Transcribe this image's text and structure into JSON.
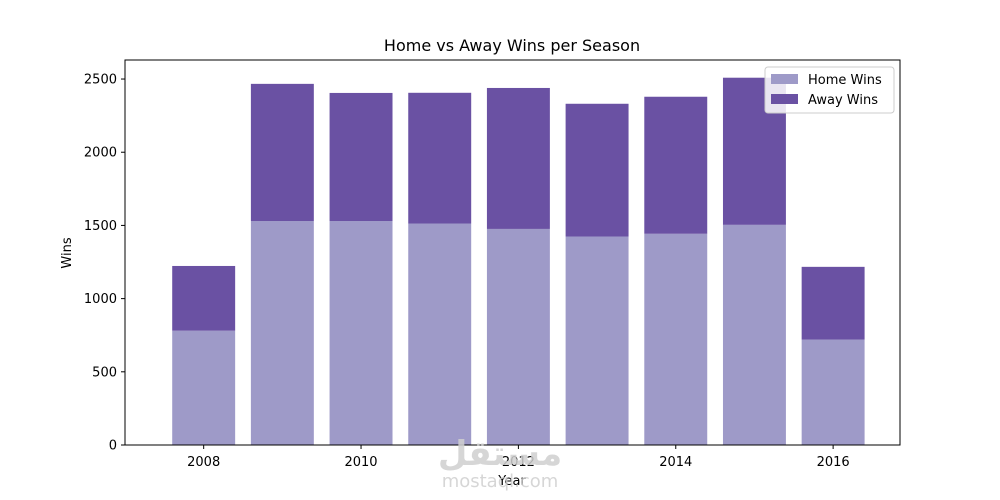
{
  "chart_data": {
    "type": "bar",
    "stacked": true,
    "title": "Home vs Away Wins per Season",
    "xlabel": "Year",
    "ylabel": "Wins",
    "categories": [
      2008,
      2009,
      2010,
      2011,
      2012,
      2013,
      2014,
      2015,
      2016
    ],
    "series": [
      {
        "name": "Home Wins",
        "color": "#9e9ac8",
        "values": [
          781,
          1530,
          1530,
          1513,
          1476,
          1424,
          1443,
          1504,
          720
        ]
      },
      {
        "name": "Away Wins",
        "color": "#6a51a3",
        "values": [
          442,
          937,
          875,
          893,
          963,
          907,
          936,
          1005,
          497
        ]
      }
    ],
    "x_ticks": [
      2008,
      2010,
      2012,
      2014,
      2016
    ],
    "y_ticks": [
      0,
      500,
      1000,
      1500,
      2000,
      2500
    ],
    "xlim": [
      2007,
      2016.85
    ],
    "ylim": [
      0,
      2630
    ],
    "legend_position": "top-right",
    "grid": false
  },
  "watermark": {
    "text": "mostaql.com",
    "logo_text": "مستقل"
  }
}
